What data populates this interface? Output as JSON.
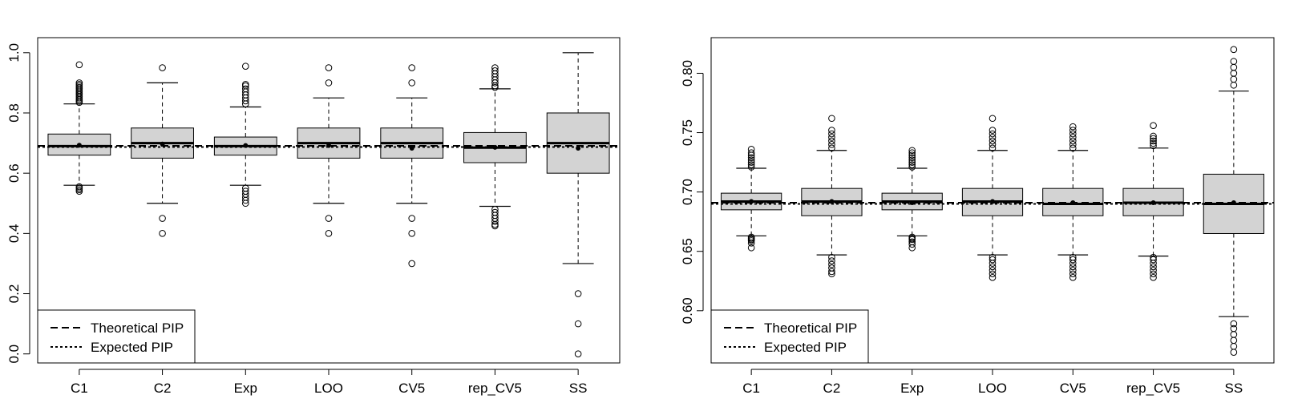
{
  "chart_data": [
    {
      "type": "boxplot",
      "title": "",
      "xlabel": "",
      "ylabel": "",
      "categories": [
        "C1",
        "C2",
        "Exp",
        "LOO",
        "CV5",
        "rep_CV5",
        "SS"
      ],
      "ylim": [
        -0.03,
        1.05
      ],
      "yticks": [
        0.0,
        0.2,
        0.4,
        0.6,
        0.8,
        1.0
      ],
      "ytick_labels": [
        "0.0",
        "0.2",
        "0.4",
        "0.6",
        "0.8",
        "1.0"
      ],
      "boxes": [
        {
          "q1": 0.66,
          "median": 0.69,
          "q3": 0.73,
          "whisker_low": 0.56,
          "whisker_high": 0.83,
          "mean": 0.693,
          "outliers": [
            0.54,
            0.545,
            0.55,
            0.555,
            0.835,
            0.84,
            0.845,
            0.85,
            0.855,
            0.86,
            0.865,
            0.87,
            0.875,
            0.88,
            0.885,
            0.89,
            0.895,
            0.9,
            0.96
          ]
        },
        {
          "q1": 0.65,
          "median": 0.7,
          "q3": 0.75,
          "whisker_low": 0.5,
          "whisker_high": 0.9,
          "mean": 0.697,
          "outliers": [
            0.4,
            0.45,
            0.95
          ]
        },
        {
          "q1": 0.66,
          "median": 0.69,
          "q3": 0.72,
          "whisker_low": 0.56,
          "whisker_high": 0.82,
          "mean": 0.692,
          "outliers": [
            0.5,
            0.51,
            0.52,
            0.53,
            0.54,
            0.55,
            0.83,
            0.84,
            0.85,
            0.86,
            0.87,
            0.88,
            0.89,
            0.895,
            0.955
          ]
        },
        {
          "q1": 0.65,
          "median": 0.7,
          "q3": 0.75,
          "whisker_low": 0.5,
          "whisker_high": 0.85,
          "mean": 0.692,
          "outliers": [
            0.4,
            0.45,
            0.9,
            0.95
          ]
        },
        {
          "q1": 0.65,
          "median": 0.7,
          "q3": 0.75,
          "whisker_low": 0.5,
          "whisker_high": 0.85,
          "mean": 0.683,
          "outliers": [
            0.3,
            0.4,
            0.45,
            0.9,
            0.95
          ]
        },
        {
          "q1": 0.635,
          "median": 0.685,
          "q3": 0.735,
          "whisker_low": 0.49,
          "whisker_high": 0.88,
          "mean": 0.686,
          "outliers": [
            0.425,
            0.43,
            0.44,
            0.45,
            0.46,
            0.47,
            0.48,
            0.885,
            0.89,
            0.9,
            0.91,
            0.92,
            0.93,
            0.94,
            0.95
          ]
        },
        {
          "q1": 0.6,
          "median": 0.7,
          "q3": 0.8,
          "whisker_low": 0.3,
          "whisker_high": 1.0,
          "mean": 0.683,
          "outliers": [
            0.0,
            0.1,
            0.2
          ]
        }
      ],
      "reference_lines": [
        {
          "name": "Theoretical PIP",
          "value": 0.691,
          "style": "dashed"
        },
        {
          "name": "Expected PIP",
          "value": 0.687,
          "style": "dotted"
        }
      ],
      "legend": {
        "position": "bottom-left",
        "entries": [
          "Theoretical PIP",
          "Expected PIP"
        ]
      }
    },
    {
      "type": "boxplot",
      "title": "",
      "xlabel": "",
      "ylabel": "",
      "categories": [
        "C1",
        "C2",
        "Exp",
        "LOO",
        "CV5",
        "rep_CV5",
        "SS"
      ],
      "ylim": [
        0.556,
        0.83
      ],
      "yticks": [
        0.6,
        0.65,
        0.7,
        0.75,
        0.8
      ],
      "ytick_labels": [
        "0.60",
        "0.65",
        "0.70",
        "0.75",
        "0.80"
      ],
      "boxes": [
        {
          "q1": 0.685,
          "median": 0.692,
          "q3": 0.699,
          "whisker_low": 0.663,
          "whisker_high": 0.72,
          "mean": 0.692,
          "outliers": [
            0.653,
            0.657,
            0.659,
            0.66,
            0.661,
            0.662,
            0.721,
            0.723,
            0.725,
            0.727,
            0.729,
            0.731,
            0.733,
            0.736
          ]
        },
        {
          "q1": 0.68,
          "median": 0.692,
          "q3": 0.703,
          "whisker_low": 0.647,
          "whisker_high": 0.735,
          "mean": 0.692,
          "outliers": [
            0.631,
            0.633,
            0.636,
            0.639,
            0.642,
            0.645,
            0.737,
            0.74,
            0.743,
            0.746,
            0.749,
            0.752,
            0.762
          ]
        },
        {
          "q1": 0.685,
          "median": 0.692,
          "q3": 0.699,
          "whisker_low": 0.663,
          "whisker_high": 0.72,
          "mean": 0.691,
          "outliers": [
            0.653,
            0.656,
            0.658,
            0.66,
            0.661,
            0.662,
            0.721,
            0.723,
            0.725,
            0.727,
            0.729,
            0.731,
            0.733,
            0.735
          ]
        },
        {
          "q1": 0.68,
          "median": 0.692,
          "q3": 0.703,
          "whisker_low": 0.647,
          "whisker_high": 0.735,
          "mean": 0.692,
          "outliers": [
            0.628,
            0.631,
            0.634,
            0.637,
            0.64,
            0.643,
            0.645,
            0.737,
            0.74,
            0.743,
            0.746,
            0.749,
            0.752,
            0.762
          ]
        },
        {
          "q1": 0.68,
          "median": 0.69,
          "q3": 0.703,
          "whisker_low": 0.647,
          "whisker_high": 0.735,
          "mean": 0.691,
          "outliers": [
            0.628,
            0.631,
            0.634,
            0.637,
            0.64,
            0.643,
            0.645,
            0.737,
            0.74,
            0.743,
            0.746,
            0.749,
            0.752,
            0.755
          ]
        },
        {
          "q1": 0.68,
          "median": 0.691,
          "q3": 0.703,
          "whisker_low": 0.646,
          "whisker_high": 0.737,
          "mean": 0.691,
          "outliers": [
            0.628,
            0.631,
            0.634,
            0.637,
            0.64,
            0.643,
            0.645,
            0.739,
            0.741,
            0.743,
            0.745,
            0.747,
            0.756
          ]
        },
        {
          "q1": 0.665,
          "median": 0.69,
          "q3": 0.715,
          "whisker_low": 0.595,
          "whisker_high": 0.785,
          "mean": 0.691,
          "outliers": [
            0.565,
            0.57,
            0.575,
            0.58,
            0.585,
            0.589,
            0.79,
            0.795,
            0.8,
            0.805,
            0.81,
            0.82
          ]
        }
      ],
      "reference_lines": [
        {
          "name": "Theoretical PIP",
          "value": 0.691,
          "style": "dashed"
        },
        {
          "name": "Expected PIP",
          "value": 0.69,
          "style": "dotted"
        }
      ],
      "legend": {
        "position": "bottom-left",
        "entries": [
          "Theoretical PIP",
          "Expected PIP"
        ]
      }
    }
  ]
}
